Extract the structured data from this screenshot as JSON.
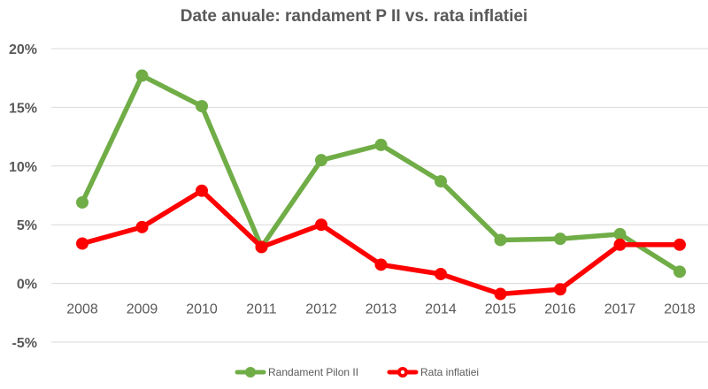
{
  "chart_data": {
    "type": "line",
    "title": "Date anuale: randament P II vs. rata inflatiei",
    "xlabel": "",
    "ylabel": "",
    "categories": [
      "2008",
      "2009",
      "2010",
      "2011",
      "2012",
      "2013",
      "2014",
      "2015",
      "2016",
      "2017",
      "2018"
    ],
    "series": [
      {
        "name": "Randament Pilon II",
        "color": "#70AD47",
        "values": [
          6.9,
          17.7,
          15.1,
          3.1,
          10.5,
          11.8,
          8.7,
          3.7,
          3.8,
          4.2,
          1.0
        ]
      },
      {
        "name": "Rata inflatiei",
        "color": "#FF0000",
        "values": [
          3.4,
          4.8,
          7.9,
          3.1,
          5.0,
          1.6,
          0.8,
          -0.9,
          -0.5,
          3.3,
          3.3
        ]
      }
    ],
    "ylim": [
      -5,
      20
    ],
    "yticks": [
      -5,
      0,
      5,
      10,
      15,
      20
    ],
    "ytick_labels": [
      "-5%",
      "0%",
      "5%",
      "10%",
      "15%",
      "20%"
    ],
    "grid": true,
    "legend_position": "bottom"
  }
}
